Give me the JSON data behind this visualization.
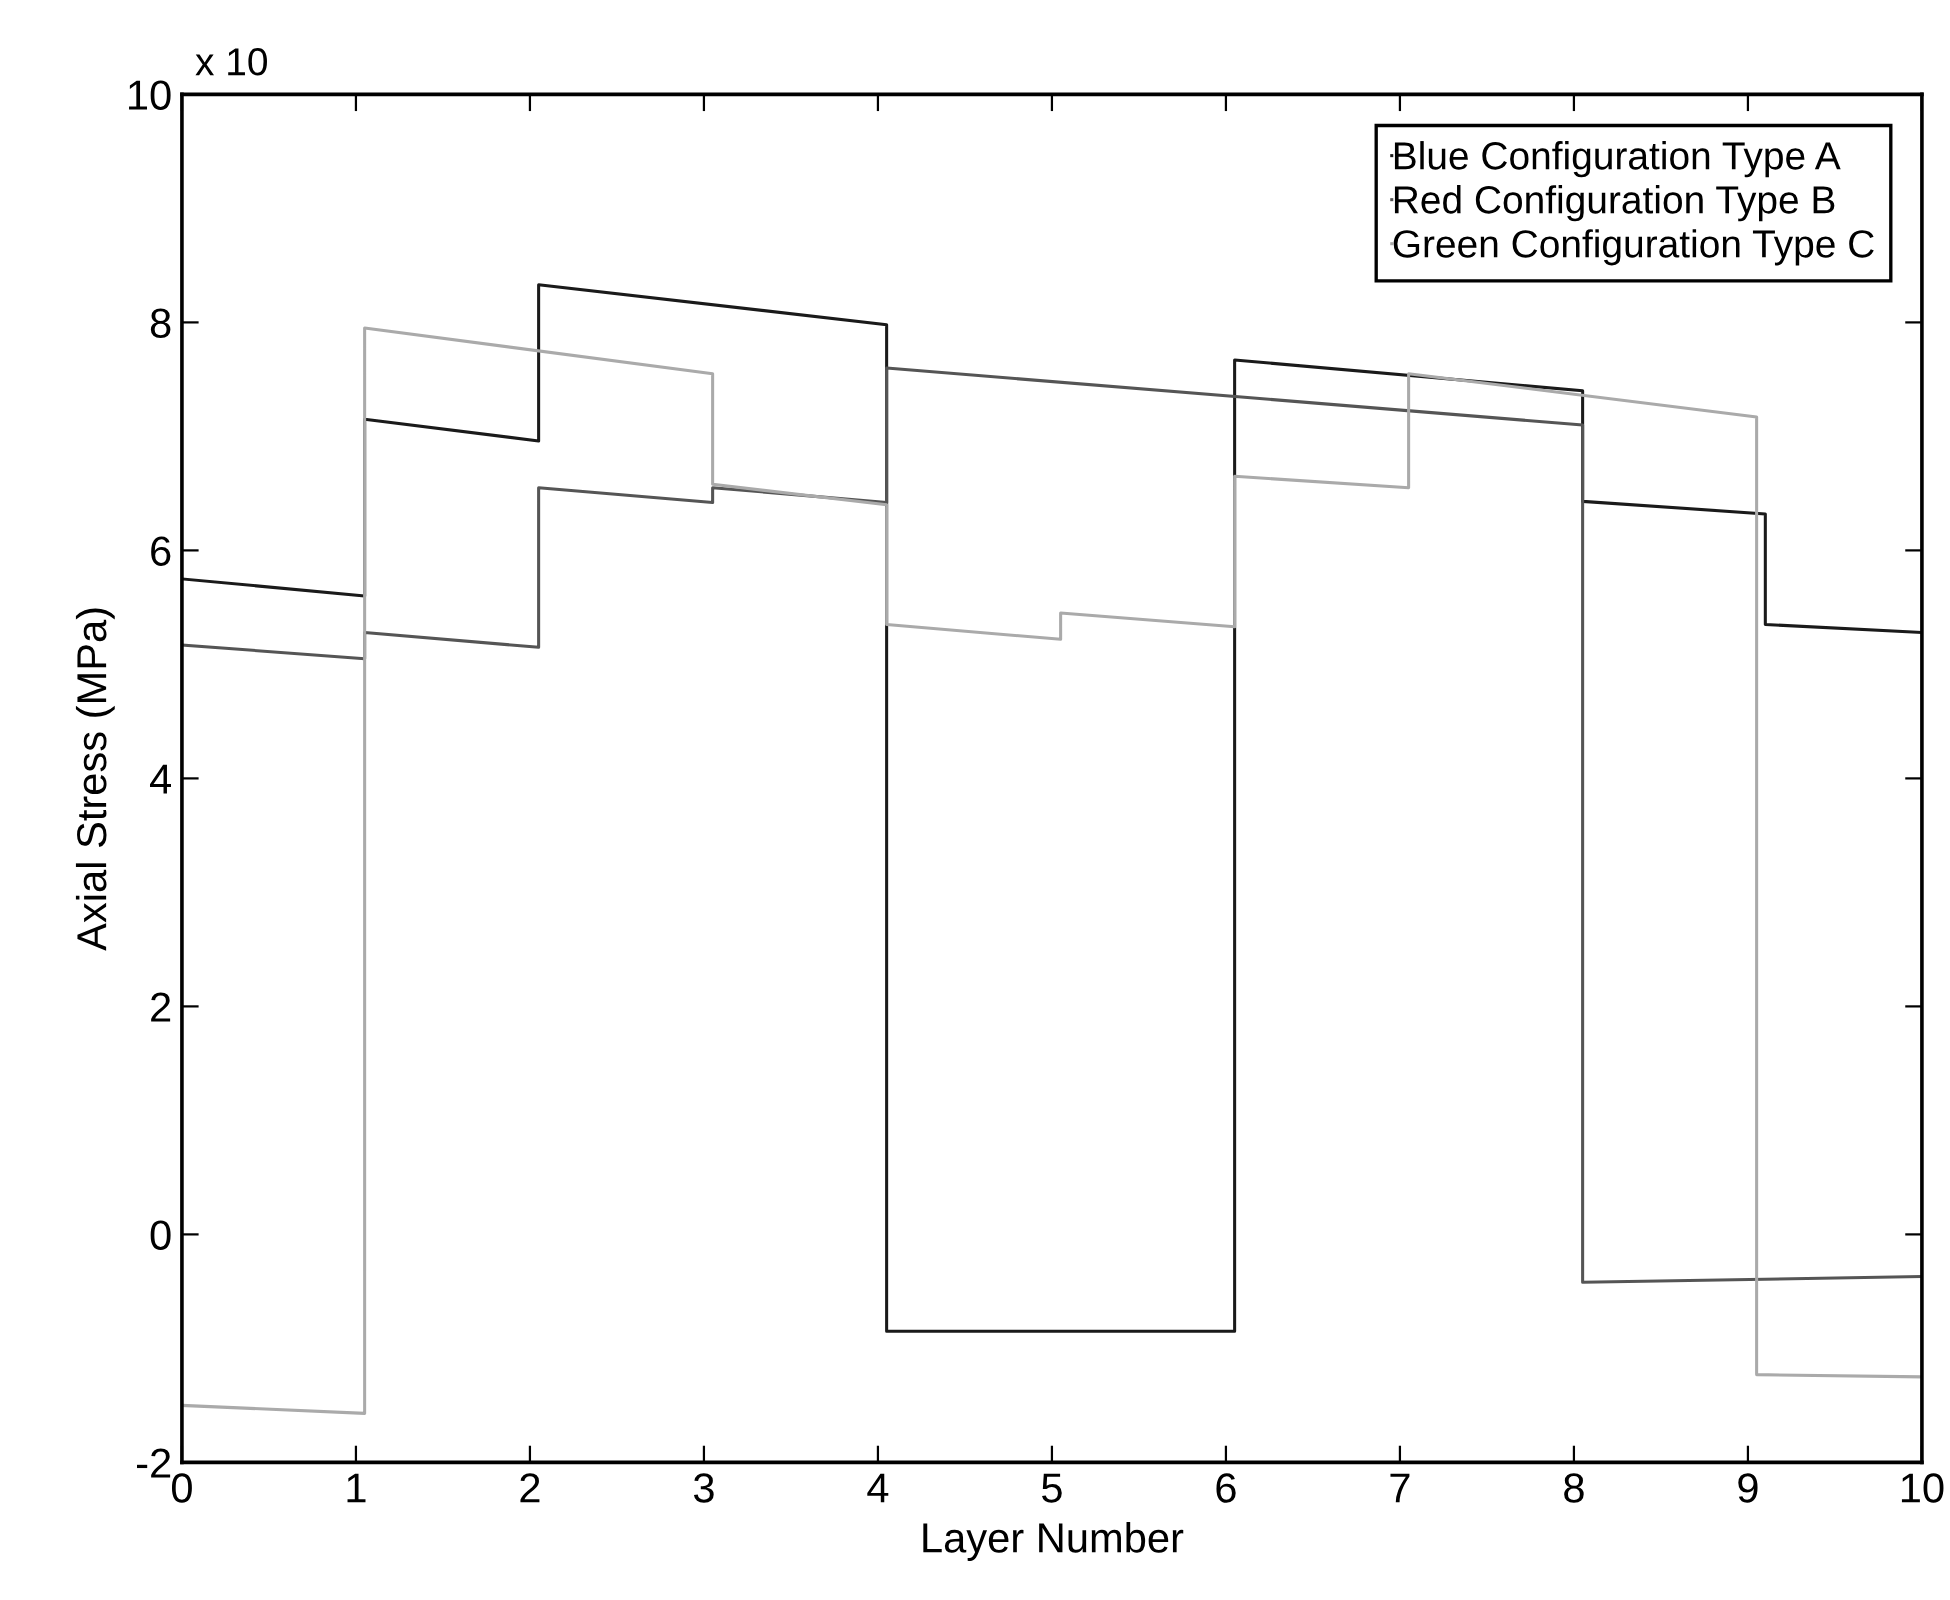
{
  "chart_data": {
    "type": "line",
    "xlabel": "Layer Number",
    "ylabel": "Axial Stress (MPa)",
    "annotations": [
      "x 10"
    ],
    "xlim": [
      0,
      10
    ],
    "xticks": [
      0,
      1,
      2,
      3,
      4,
      5,
      6,
      7,
      8,
      9,
      10
    ],
    "ylim": [
      -2,
      10
    ],
    "yticks": [
      -2,
      0,
      2,
      4,
      6,
      8,
      10
    ],
    "grid": false,
    "legend": "top right",
    "marker": "none",
    "line_style": "solid",
    "series": [
      {
        "name": "Blue Configuration Type A",
        "color": "#1a1a1a",
        "x": [
          0,
          1.05,
          1.05,
          2.05,
          2.05,
          4.05,
          4.05,
          6.05,
          6.05,
          8.05,
          8.05,
          9.1,
          9.1,
          10
        ],
        "values": [
          5.75,
          5.6,
          7.15,
          6.96,
          8.33,
          7.98,
          -0.85,
          -0.85,
          7.67,
          7.4,
          6.43,
          6.32,
          5.35,
          5.28
        ]
      },
      {
        "name": "Red Configuration Type B",
        "color": "#555555",
        "x": [
          0,
          1.05,
          1.05,
          2.05,
          2.05,
          3.05,
          3.05,
          4.05,
          4.05,
          8.05,
          8.05,
          10
        ],
        "values": [
          5.17,
          5.05,
          5.28,
          5.15,
          6.55,
          6.42,
          6.55,
          6.42,
          7.6,
          7.1,
          -0.42,
          -0.37
        ]
      },
      {
        "name": "Green Configuration Type C",
        "color": "#aaaaaa",
        "x": [
          0,
          1.05,
          1.05,
          3.05,
          3.05,
          4.05,
          4.05,
          5.05,
          5.05,
          6.05,
          6.05,
          7.05,
          7.05,
          9.05,
          9.05,
          10
        ],
        "values": [
          -1.5,
          -1.57,
          7.95,
          7.55,
          6.58,
          6.4,
          5.35,
          5.22,
          5.45,
          5.33,
          6.65,
          6.55,
          7.55,
          7.17,
          -1.23,
          -1.25
        ]
      }
    ]
  }
}
